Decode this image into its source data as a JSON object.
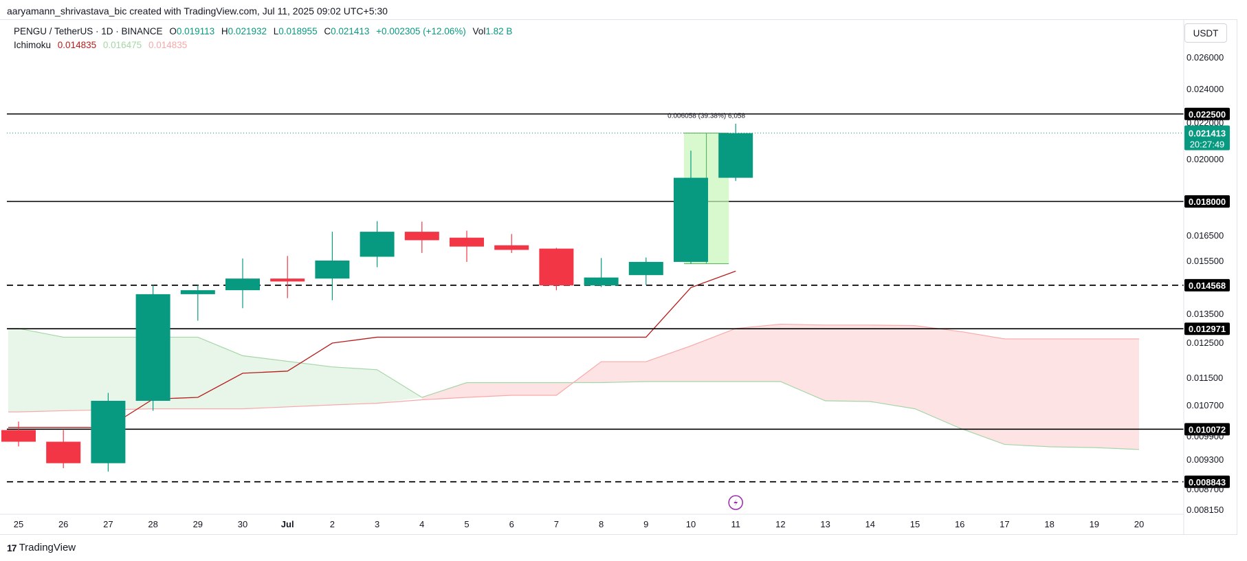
{
  "header": {
    "credit": "aaryamann_shrivastava_bic created with TradingView.com, Jul 11, 2025 09:02 UTC+5:30"
  },
  "legend": {
    "symbol": "PENGU / TetherUS · 1D · BINANCE",
    "o_label": "O",
    "o_value": "0.019113",
    "h_label": "H",
    "h_value": "0.021932",
    "l_label": "L",
    "l_value": "0.018955",
    "c_label": "C",
    "c_value": "0.021413",
    "change": "+0.002305 (+12.06%)",
    "vol_label": "Vol",
    "vol_value": "1.82 B",
    "ichimoku_label": "Ichimoku",
    "ichimoku_v1": "0.014835",
    "ichimoku_v2": "0.016475",
    "ichimoku_v3": "0.014835"
  },
  "currency_button": "USDT",
  "measure_label": "0.006058 (39.38%) 6,058",
  "price_countdown": "20:27:49",
  "footer": {
    "brand": "TradingView"
  },
  "colors": {
    "up": "#089981",
    "down": "#f23645",
    "tenkan": "#b71c1c",
    "span_b": "#f7a9a7",
    "span_a": "#a5d6a7",
    "cloud_green": "#e8f5e9",
    "cloud_red": "#fde3e3",
    "measure": "#c8f5b8"
  },
  "chart_data": {
    "type": "candlestick",
    "title": "PENGU / TetherUS · 1D · BINANCE",
    "x_labels": [
      "25",
      "26",
      "27",
      "28",
      "29",
      "30",
      "Jul",
      "2",
      "3",
      "4",
      "5",
      "6",
      "7",
      "8",
      "9",
      "10",
      "11",
      "12",
      "13",
      "14",
      "15",
      "16",
      "17",
      "18",
      "19",
      "20"
    ],
    "y_ticks": [
      "0.026000",
      "0.024000",
      "0.022000",
      "0.020000",
      "0.016500",
      "0.015500",
      "0.013500",
      "0.012500",
      "0.011500",
      "0.010700",
      "0.009900",
      "0.009300",
      "0.008700",
      "0.008150"
    ],
    "candles": [
      {
        "date": "Jun 25",
        "o": 0.01005,
        "h": 0.01027,
        "l": 0.00963,
        "c": 0.00975
      },
      {
        "date": "Jun 26",
        "o": 0.00975,
        "h": 0.01005,
        "l": 0.00912,
        "c": 0.00922
      },
      {
        "date": "Jun 27",
        "o": 0.00922,
        "h": 0.01105,
        "l": 0.00905,
        "c": 0.01082
      },
      {
        "date": "Jun 28",
        "o": 0.01082,
        "h": 0.01458,
        "l": 0.01055,
        "c": 0.01423
      },
      {
        "date": "Jun 29",
        "o": 0.01423,
        "h": 0.01458,
        "l": 0.01325,
        "c": 0.01438
      },
      {
        "date": "Jun 30",
        "o": 0.01438,
        "h": 0.01558,
        "l": 0.0137,
        "c": 0.01482
      },
      {
        "date": "Jul 1",
        "o": 0.01482,
        "h": 0.01568,
        "l": 0.01408,
        "c": 0.01471
      },
      {
        "date": "Jul 2",
        "o": 0.01482,
        "h": 0.01665,
        "l": 0.014,
        "c": 0.0155
      },
      {
        "date": "Jul 3",
        "o": 0.01565,
        "h": 0.01712,
        "l": 0.01525,
        "c": 0.01665
      },
      {
        "date": "Jul 4",
        "o": 0.01665,
        "h": 0.0171,
        "l": 0.0158,
        "c": 0.0163
      },
      {
        "date": "Jul 5",
        "o": 0.0164,
        "h": 0.0167,
        "l": 0.01545,
        "c": 0.01605
      },
      {
        "date": "Jul 6",
        "o": 0.0161,
        "h": 0.01655,
        "l": 0.0158,
        "c": 0.01592
      },
      {
        "date": "Jul 7",
        "o": 0.01597,
        "h": 0.016,
        "l": 0.01438,
        "c": 0.01456
      },
      {
        "date": "Jul 8",
        "o": 0.01456,
        "h": 0.0156,
        "l": 0.0145,
        "c": 0.01486
      },
      {
        "date": "Jul 9",
        "o": 0.01495,
        "h": 0.01562,
        "l": 0.01458,
        "c": 0.01545
      },
      {
        "date": "Jul 10",
        "o": 0.01545,
        "h": 0.02045,
        "l": 0.01538,
        "c": 0.01911
      },
      {
        "date": "Jul 11",
        "o": 0.01911,
        "h": 0.02193,
        "l": 0.01896,
        "c": 0.02141
      }
    ],
    "horizontal_levels": [
      {
        "value": "0.022500",
        "style": "solid"
      },
      {
        "value": "0.018000",
        "style": "solid"
      },
      {
        "value": "0.014568",
        "style": "dashed"
      },
      {
        "value": "0.012971",
        "style": "solid"
      },
      {
        "value": "0.010072",
        "style": "solid"
      },
      {
        "value": "0.008843",
        "style": "dashed"
      }
    ],
    "current_price": "0.021413",
    "ichimoku": {
      "tenkan": [
        0.01012,
        0.01012,
        0.01012,
        0.01087,
        0.01092,
        0.01162,
        0.01168,
        0.01248,
        0.01268,
        0.01268,
        0.01268,
        0.01268,
        0.01268,
        0.01268,
        0.01268,
        0.01448,
        0.0151
      ],
      "span_a_dates": [
        "Jun 25",
        "Jun 26",
        "Jun 28",
        "Jun 29",
        "Jun 30",
        "Jul 2",
        "Jul 3",
        "Jul 4",
        "Jul 5",
        "Jul 6",
        "Jul 7",
        "Jul 8",
        "Jul 9",
        "Jul 10",
        "Jul 11",
        "Jul 12",
        "Jul 13",
        "Jul 14",
        "Jul 15",
        "Jul 16",
        "Jul 17",
        "Jul 18",
        "Jul 19",
        "Jul 20"
      ],
      "span_a": [
        0.01298,
        0.01268,
        0.01268,
        0.01268,
        0.01212,
        0.0118,
        0.01172,
        0.01092,
        0.01135,
        0.01135,
        0.01135,
        0.01135,
        0.01138,
        0.01138,
        0.01138,
        0.01138,
        0.01082,
        0.0108,
        0.0106,
        0.0101,
        0.00968,
        0.00962,
        0.0096,
        0.00955
      ],
      "span_b": [
        0.01052,
        0.01055,
        0.0106,
        0.0106,
        0.0106,
        0.0107,
        0.01075,
        0.01085,
        0.01092,
        0.01098,
        0.01098,
        0.01195,
        0.01195,
        0.0124,
        0.01298,
        0.01313,
        0.0131,
        0.0131,
        0.01308,
        0.01288,
        0.01262,
        0.01262,
        0.01262,
        0.01262
      ]
    }
  }
}
